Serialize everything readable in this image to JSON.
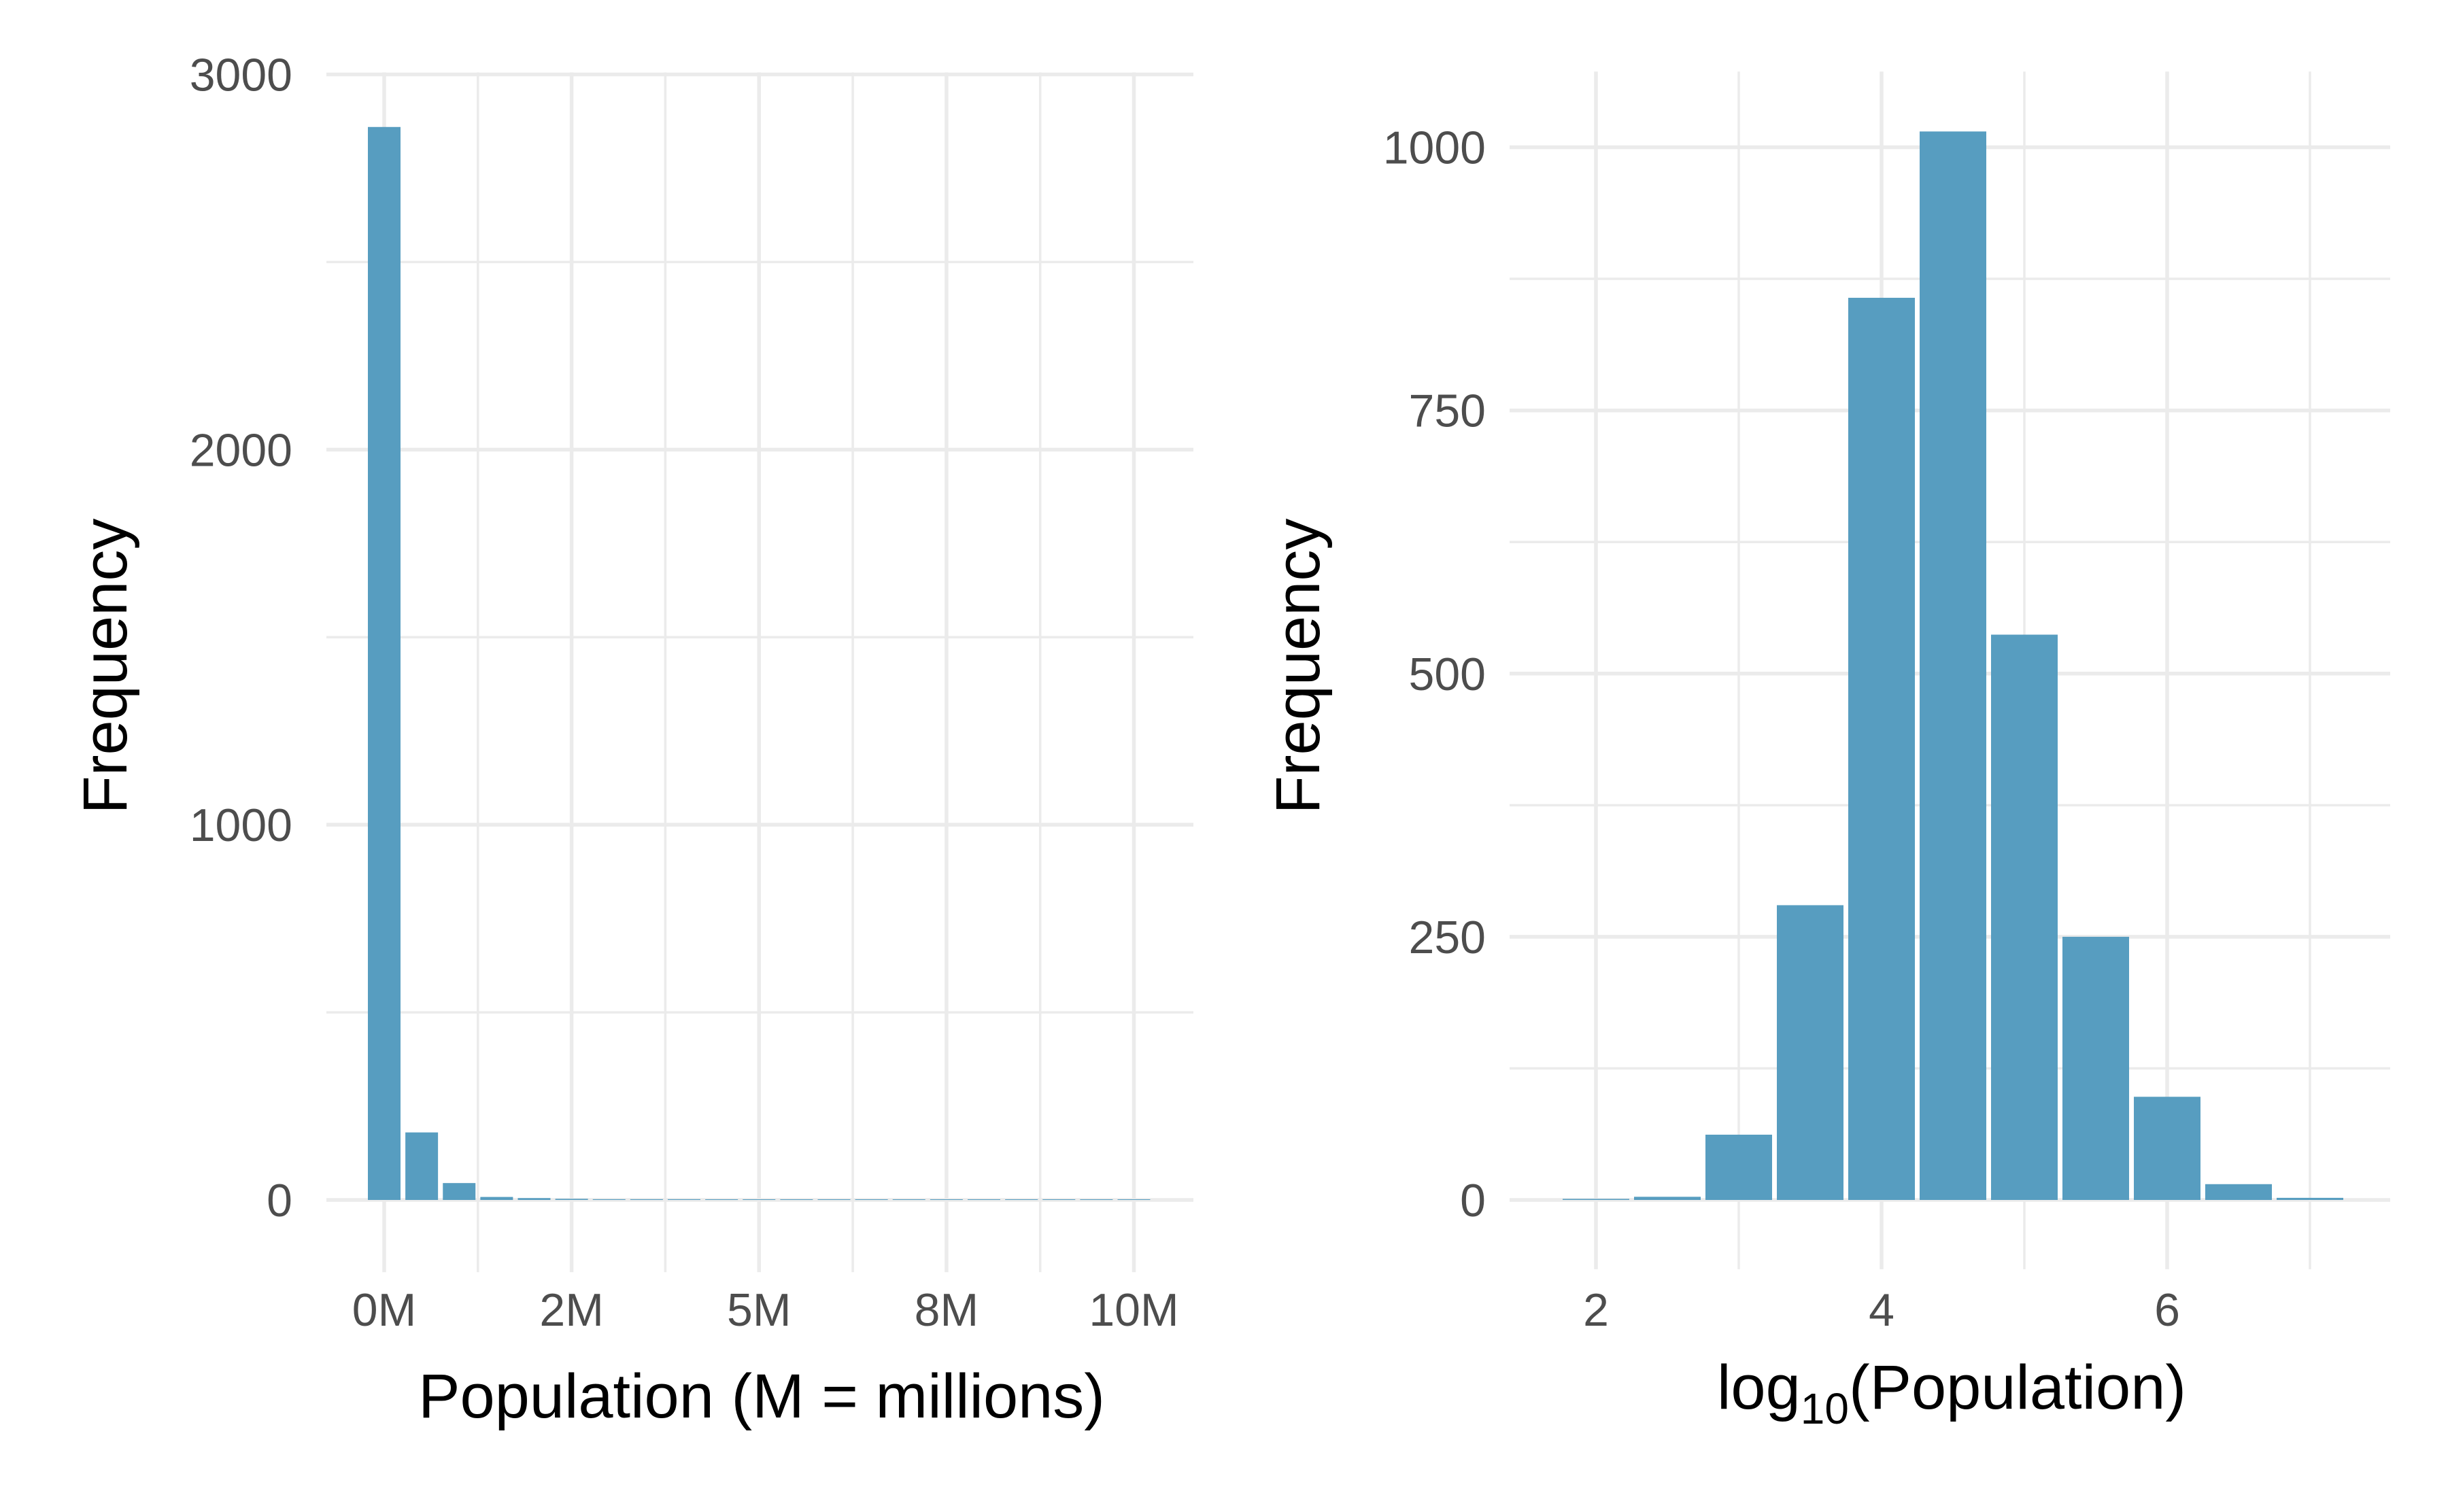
{
  "bar_color": "#579DC0",
  "grid_color": "#EBEBEB",
  "chart_data": [
    {
      "type": "bar",
      "xlabel": "Population (M = millions)",
      "ylabel": "Frequency",
      "x_ticks": [
        "0M",
        "2M",
        "5M",
        "8M",
        "10M"
      ],
      "y_ticks": [
        "0",
        "1000",
        "2000",
        "3000"
      ],
      "ylim": [
        -120,
        3000
      ],
      "grid": true,
      "bins": [
        {
          "x": 0.0,
          "count": 2860
        },
        {
          "x": 0.5,
          "count": 180
        },
        {
          "x": 1.0,
          "count": 45
        },
        {
          "x": 1.5,
          "count": 8
        },
        {
          "x": 2.0,
          "count": 5
        },
        {
          "x": 2.5,
          "count": 3
        },
        {
          "x": 3.0,
          "count": 2
        },
        {
          "x": 3.5,
          "count": 2
        },
        {
          "x": 4.0,
          "count": 2
        },
        {
          "x": 4.5,
          "count": 1
        },
        {
          "x": 5.0,
          "count": 1
        },
        {
          "x": 5.5,
          "count": 1
        },
        {
          "x": 6.0,
          "count": 1
        },
        {
          "x": 6.5,
          "count": 1
        },
        {
          "x": 7.0,
          "count": 1
        },
        {
          "x": 7.5,
          "count": 1
        },
        {
          "x": 8.0,
          "count": 1
        },
        {
          "x": 8.5,
          "count": 1
        },
        {
          "x": 9.0,
          "count": 1
        },
        {
          "x": 9.5,
          "count": 1
        },
        {
          "x": 10.0,
          "count": 1
        }
      ]
    },
    {
      "type": "bar",
      "xlabel": "log",
      "xlabel_sub": "10",
      "xlabel_tail": "(Population)",
      "ylabel": "Frequency",
      "x_ticks": [
        "2",
        "4",
        "6"
      ],
      "y_ticks": [
        "0",
        "250",
        "500",
        "750",
        "1000"
      ],
      "ylim": [
        -40,
        1070
      ],
      "grid": true,
      "bins": [
        {
          "x": 2.0,
          "count": 1
        },
        {
          "x": 2.5,
          "count": 3
        },
        {
          "x": 3.0,
          "count": 62
        },
        {
          "x": 3.5,
          "count": 280
        },
        {
          "x": 4.0,
          "count": 857
        },
        {
          "x": 4.5,
          "count": 1015
        },
        {
          "x": 5.0,
          "count": 537
        },
        {
          "x": 5.5,
          "count": 250
        },
        {
          "x": 6.0,
          "count": 98
        },
        {
          "x": 6.5,
          "count": 15
        },
        {
          "x": 7.0,
          "count": 2
        }
      ]
    }
  ]
}
